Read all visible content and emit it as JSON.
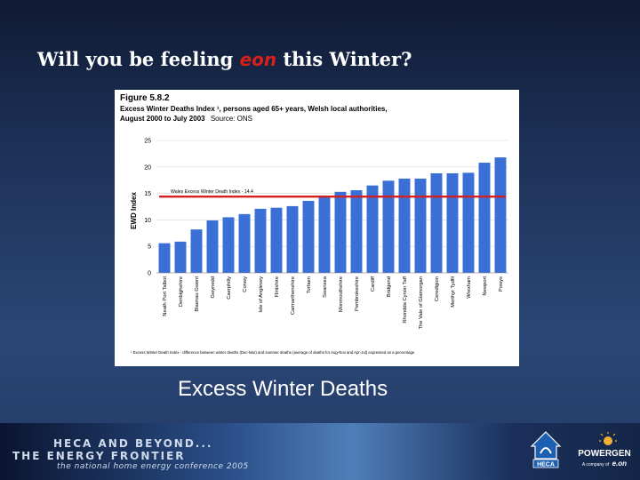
{
  "slide": {
    "title_part1": "Will you be feeling",
    "title_eon": "eon",
    "title_part2": "this Winter?",
    "caption": "Excess Winter Deaths"
  },
  "footer": {
    "line1": "HECA AND BEYOND...",
    "line2": "THE ENERGY FRONTIER",
    "line3": "the national home energy conference 2005",
    "heca_label": "HECA",
    "powergen_label": "POWERGEN",
    "powergen_sub": "A company of",
    "powergen_eon": "e.on"
  },
  "chart_data": {
    "type": "bar",
    "figure_label": "Figure 5.8.2",
    "title": "Excess Winter Deaths Index ¹, persons aged 65+ years, Welsh local authorities,",
    "title_line2": "August 2000 to July 2003",
    "source": "Source: ONS",
    "ylabel": "EWD Index",
    "ylim": [
      0,
      25
    ],
    "yticks": [
      0,
      5,
      10,
      15,
      20,
      25
    ],
    "grid": true,
    "bar_color": "#3a6fd6",
    "reference_line": {
      "value": 14.4,
      "label": "Wales Excess Winter Death Index - 14.4",
      "color": "#d62020"
    },
    "categories": [
      "Neath Port Talbot",
      "Denbighshire",
      "Blaenau Gwent",
      "Gwynedd",
      "Caerphilly",
      "Conwy",
      "Isle of Anglesey",
      "Flintshire",
      "Carmarthenshire",
      "Torfaen",
      "Swansea",
      "Monmouthshire",
      "Pembrokeshire",
      "Cardiff",
      "Bridgend",
      "Rhondda Cynon Taff",
      "The Vale of Glamorgan",
      "Ceredigion",
      "Merthyr Tydfil",
      "Wrexham",
      "Newport",
      "Powys"
    ],
    "values": [
      5.6,
      5.9,
      8.2,
      9.9,
      10.5,
      11.1,
      12.1,
      12.3,
      12.6,
      13.6,
      14.4,
      15.3,
      15.6,
      16.5,
      17.4,
      17.8,
      17.8,
      18.8,
      18.8,
      18.9,
      20.8,
      21.8
    ],
    "footnote": "¹ Excess Winter Death Index - difference between winter deaths (Dec-Mar) and summer deaths (average of deaths for Aug-Nov and Apr-Jul) expressed as a percentage"
  }
}
